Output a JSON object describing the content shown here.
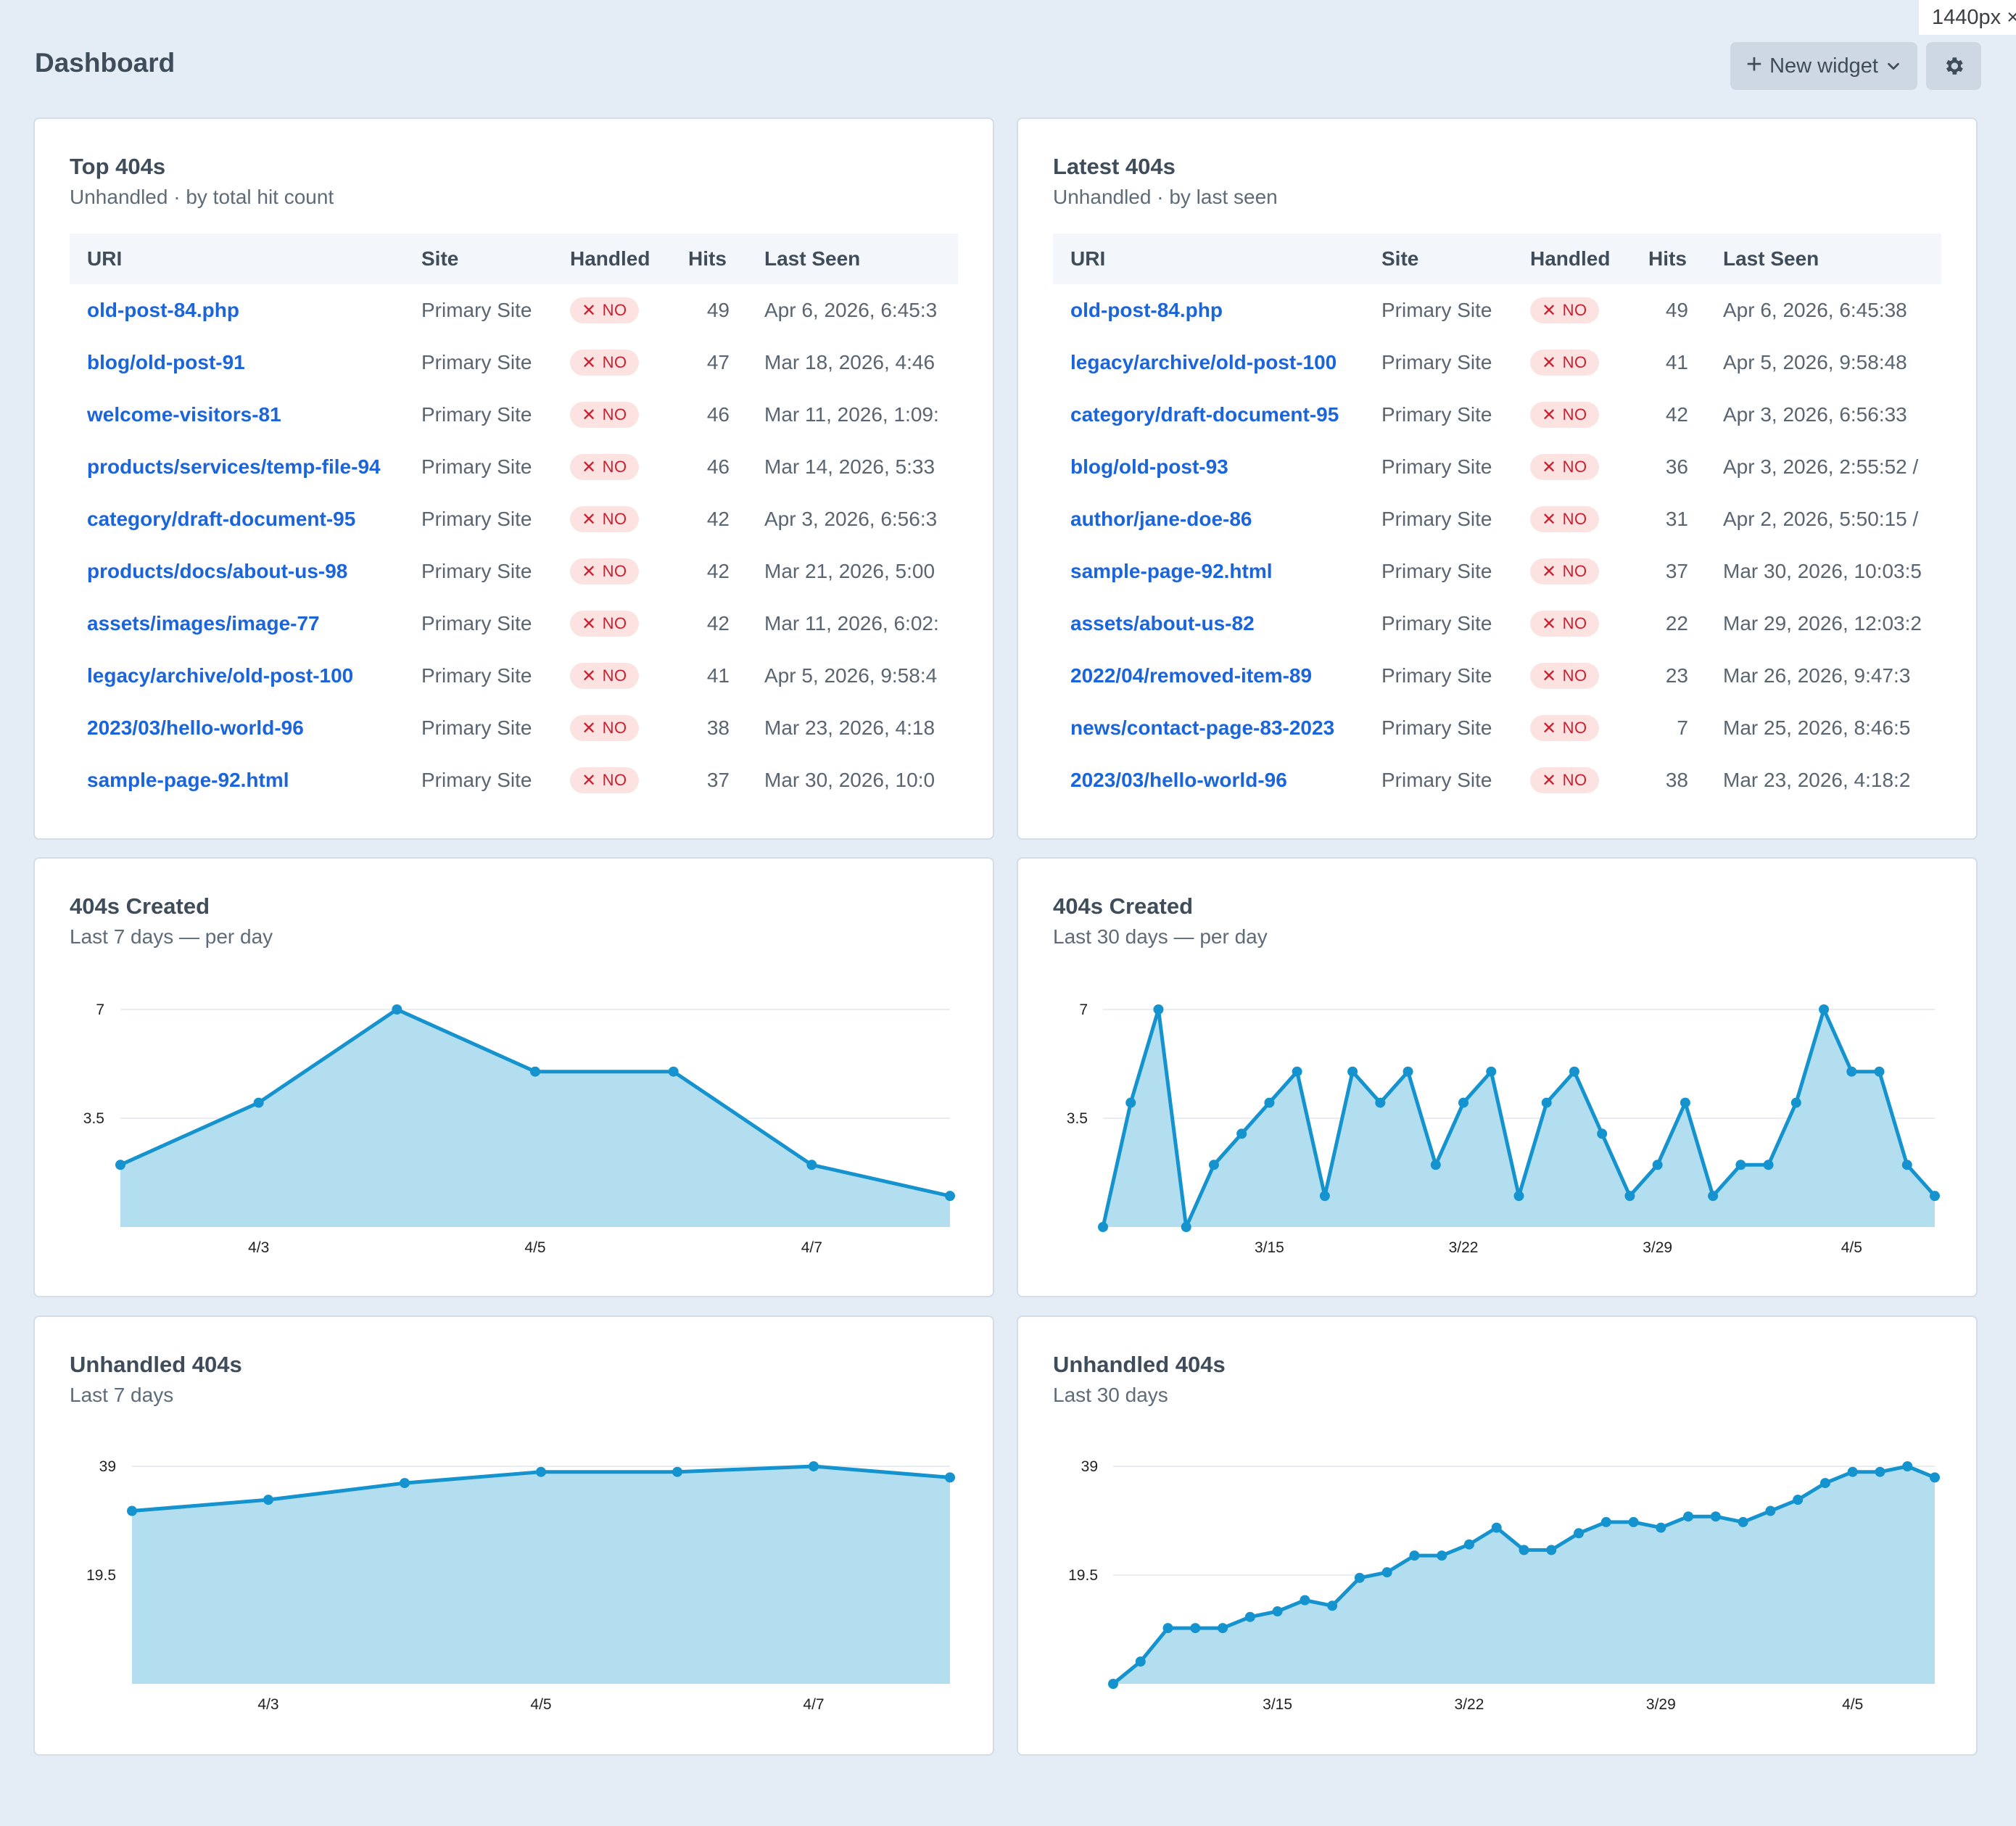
{
  "viewport_tag": "1440px ×",
  "header": {
    "title": "Dashboard",
    "new_widget_label": "New widget"
  },
  "icons": {
    "plus": "plus-icon",
    "chevron": "chevron-down-icon",
    "settings": "gear-icon",
    "no": "x-icon"
  },
  "colors": {
    "link": "#1b64d9",
    "badge_bg": "#fde2e2",
    "badge_text": "#c8202f",
    "line": "#1493cf",
    "area": "#b3def0"
  },
  "top404s": {
    "title": "Top 404s",
    "subtitle": "Unhandled · by total hit count",
    "columns": [
      "URI",
      "Site",
      "Handled",
      "Hits",
      "Last Seen"
    ],
    "rows": [
      {
        "uri": "old-post-84.php",
        "site": "Primary Site",
        "handled": "NO",
        "hits": "49",
        "last_seen": "Apr 6, 2026, 6:45:3"
      },
      {
        "uri": "blog/old-post-91",
        "site": "Primary Site",
        "handled": "NO",
        "hits": "47",
        "last_seen": "Mar 18, 2026, 4:46"
      },
      {
        "uri": "welcome-visitors-81",
        "site": "Primary Site",
        "handled": "NO",
        "hits": "46",
        "last_seen": "Mar 11, 2026, 1:09:"
      },
      {
        "uri": "products/services/temp-file-94",
        "site": "Primary Site",
        "handled": "NO",
        "hits": "46",
        "last_seen": "Mar 14, 2026, 5:33"
      },
      {
        "uri": "category/draft-document-95",
        "site": "Primary Site",
        "handled": "NO",
        "hits": "42",
        "last_seen": "Apr 3, 2026, 6:56:3"
      },
      {
        "uri": "products/docs/about-us-98",
        "site": "Primary Site",
        "handled": "NO",
        "hits": "42",
        "last_seen": "Mar 21, 2026, 5:00"
      },
      {
        "uri": "assets/images/image-77",
        "site": "Primary Site",
        "handled": "NO",
        "hits": "42",
        "last_seen": "Mar 11, 2026, 6:02:"
      },
      {
        "uri": "legacy/archive/old-post-100",
        "site": "Primary Site",
        "handled": "NO",
        "hits": "41",
        "last_seen": "Apr 5, 2026, 9:58:4"
      },
      {
        "uri": "2023/03/hello-world-96",
        "site": "Primary Site",
        "handled": "NO",
        "hits": "38",
        "last_seen": "Mar 23, 2026, 4:18"
      },
      {
        "uri": "sample-page-92.html",
        "site": "Primary Site",
        "handled": "NO",
        "hits": "37",
        "last_seen": "Mar 30, 2026, 10:0"
      }
    ]
  },
  "latest404s": {
    "title": "Latest 404s",
    "subtitle": "Unhandled · by last seen",
    "columns": [
      "URI",
      "Site",
      "Handled",
      "Hits",
      "Last Seen"
    ],
    "rows": [
      {
        "uri": "old-post-84.php",
        "site": "Primary Site",
        "handled": "NO",
        "hits": "49",
        "last_seen": "Apr 6, 2026, 6:45:38"
      },
      {
        "uri": "legacy/archive/old-post-100",
        "site": "Primary Site",
        "handled": "NO",
        "hits": "41",
        "last_seen": "Apr 5, 2026, 9:58:48"
      },
      {
        "uri": "category/draft-document-95",
        "site": "Primary Site",
        "handled": "NO",
        "hits": "42",
        "last_seen": "Apr 3, 2026, 6:56:33"
      },
      {
        "uri": "blog/old-post-93",
        "site": "Primary Site",
        "handled": "NO",
        "hits": "36",
        "last_seen": "Apr 3, 2026, 2:55:52 /"
      },
      {
        "uri": "author/jane-doe-86",
        "site": "Primary Site",
        "handled": "NO",
        "hits": "31",
        "last_seen": "Apr 2, 2026, 5:50:15 /"
      },
      {
        "uri": "sample-page-92.html",
        "site": "Primary Site",
        "handled": "NO",
        "hits": "37",
        "last_seen": "Mar 30, 2026, 10:03:5"
      },
      {
        "uri": "assets/about-us-82",
        "site": "Primary Site",
        "handled": "NO",
        "hits": "22",
        "last_seen": "Mar 29, 2026, 12:03:2"
      },
      {
        "uri": "2022/04/removed-item-89",
        "site": "Primary Site",
        "handled": "NO",
        "hits": "23",
        "last_seen": "Mar 26, 2026, 9:47:3"
      },
      {
        "uri": "news/contact-page-83-2023",
        "site": "Primary Site",
        "handled": "NO",
        "hits": "7",
        "last_seen": "Mar 25, 2026, 8:46:5"
      },
      {
        "uri": "2023/03/hello-world-96",
        "site": "Primary Site",
        "handled": "NO",
        "hits": "38",
        "last_seen": "Mar 23, 2026, 4:18:2"
      }
    ]
  },
  "created7": {
    "title": "404s Created",
    "subtitle": "Last 7 days — per day"
  },
  "created30": {
    "title": "404s Created",
    "subtitle": "Last 30 days — per day"
  },
  "unhandled7": {
    "title": "Unhandled 404s",
    "subtitle": "Last 7 days"
  },
  "unhandled30": {
    "title": "Unhandled 404s",
    "subtitle": "Last 30 days"
  },
  "chart_data": [
    {
      "id": "created7",
      "type": "area",
      "x": [
        "4/2",
        "4/3",
        "4/4",
        "4/5",
        "4/6",
        "4/7",
        "4/8"
      ],
      "values": [
        2,
        4,
        7,
        5,
        5,
        2,
        1
      ],
      "ylim": [
        0,
        7
      ],
      "yticks": [
        3.5,
        7
      ],
      "ytick_labels": [
        "3.5",
        "7"
      ],
      "xtick_labels": {
        "1": "4/3",
        "3": "4/5",
        "5": "4/7"
      },
      "grid": true
    },
    {
      "id": "created30",
      "type": "area",
      "x": [
        "3/9",
        "3/10",
        "3/11",
        "3/12",
        "3/13",
        "3/14",
        "3/15",
        "3/16",
        "3/17",
        "3/18",
        "3/19",
        "3/20",
        "3/21",
        "3/22",
        "3/23",
        "3/24",
        "3/25",
        "3/26",
        "3/27",
        "3/28",
        "3/29",
        "3/30",
        "3/31",
        "4/1",
        "4/2",
        "4/3",
        "4/4",
        "4/5",
        "4/6",
        "4/7",
        "4/8"
      ],
      "values": [
        0,
        4,
        7,
        0,
        2,
        3,
        4,
        5,
        1,
        5,
        4,
        5,
        2,
        4,
        5,
        1,
        4,
        5,
        3,
        1,
        2,
        4,
        1,
        2,
        2,
        4,
        7,
        5,
        5,
        2,
        1
      ],
      "ylim": [
        0,
        7
      ],
      "yticks": [
        3.5,
        7
      ],
      "ytick_labels": [
        "3.5",
        "7"
      ],
      "xtick_labels": {
        "6": "3/15",
        "13": "3/22",
        "20": "3/29",
        "27": "4/5"
      },
      "grid": true
    },
    {
      "id": "unhandled7",
      "type": "area",
      "x": [
        "4/2",
        "4/3",
        "4/4",
        "4/5",
        "4/6",
        "4/7",
        "4/8"
      ],
      "values": [
        31,
        33,
        36,
        38,
        38,
        39,
        37
      ],
      "ylim": [
        0,
        39
      ],
      "yticks": [
        19.5,
        39
      ],
      "ytick_labels": [
        "19.5",
        "39"
      ],
      "xtick_labels": {
        "1": "4/3",
        "3": "4/5",
        "5": "4/7"
      },
      "grid": true
    },
    {
      "id": "unhandled30",
      "type": "area",
      "x": [
        "3/9",
        "3/10",
        "3/11",
        "3/12",
        "3/13",
        "3/14",
        "3/15",
        "3/16",
        "3/17",
        "3/18",
        "3/19",
        "3/20",
        "3/21",
        "3/22",
        "3/23",
        "3/24",
        "3/25",
        "3/26",
        "3/27",
        "3/28",
        "3/29",
        "3/30",
        "3/31",
        "4/1",
        "4/2",
        "4/3",
        "4/4",
        "4/5",
        "4/6",
        "4/7",
        "4/8"
      ],
      "values": [
        0,
        4,
        10,
        10,
        10,
        12,
        13,
        15,
        14,
        19,
        20,
        23,
        23,
        25,
        28,
        24,
        24,
        27,
        29,
        29,
        28,
        30,
        30,
        29,
        31,
        33,
        36,
        38,
        38,
        39,
        37
      ],
      "ylim": [
        0,
        39
      ],
      "yticks": [
        19.5,
        39
      ],
      "ytick_labels": [
        "19.5",
        "39"
      ],
      "xtick_labels": {
        "6": "3/15",
        "13": "3/22",
        "20": "3/29",
        "27": "4/5"
      },
      "grid": true
    }
  ]
}
